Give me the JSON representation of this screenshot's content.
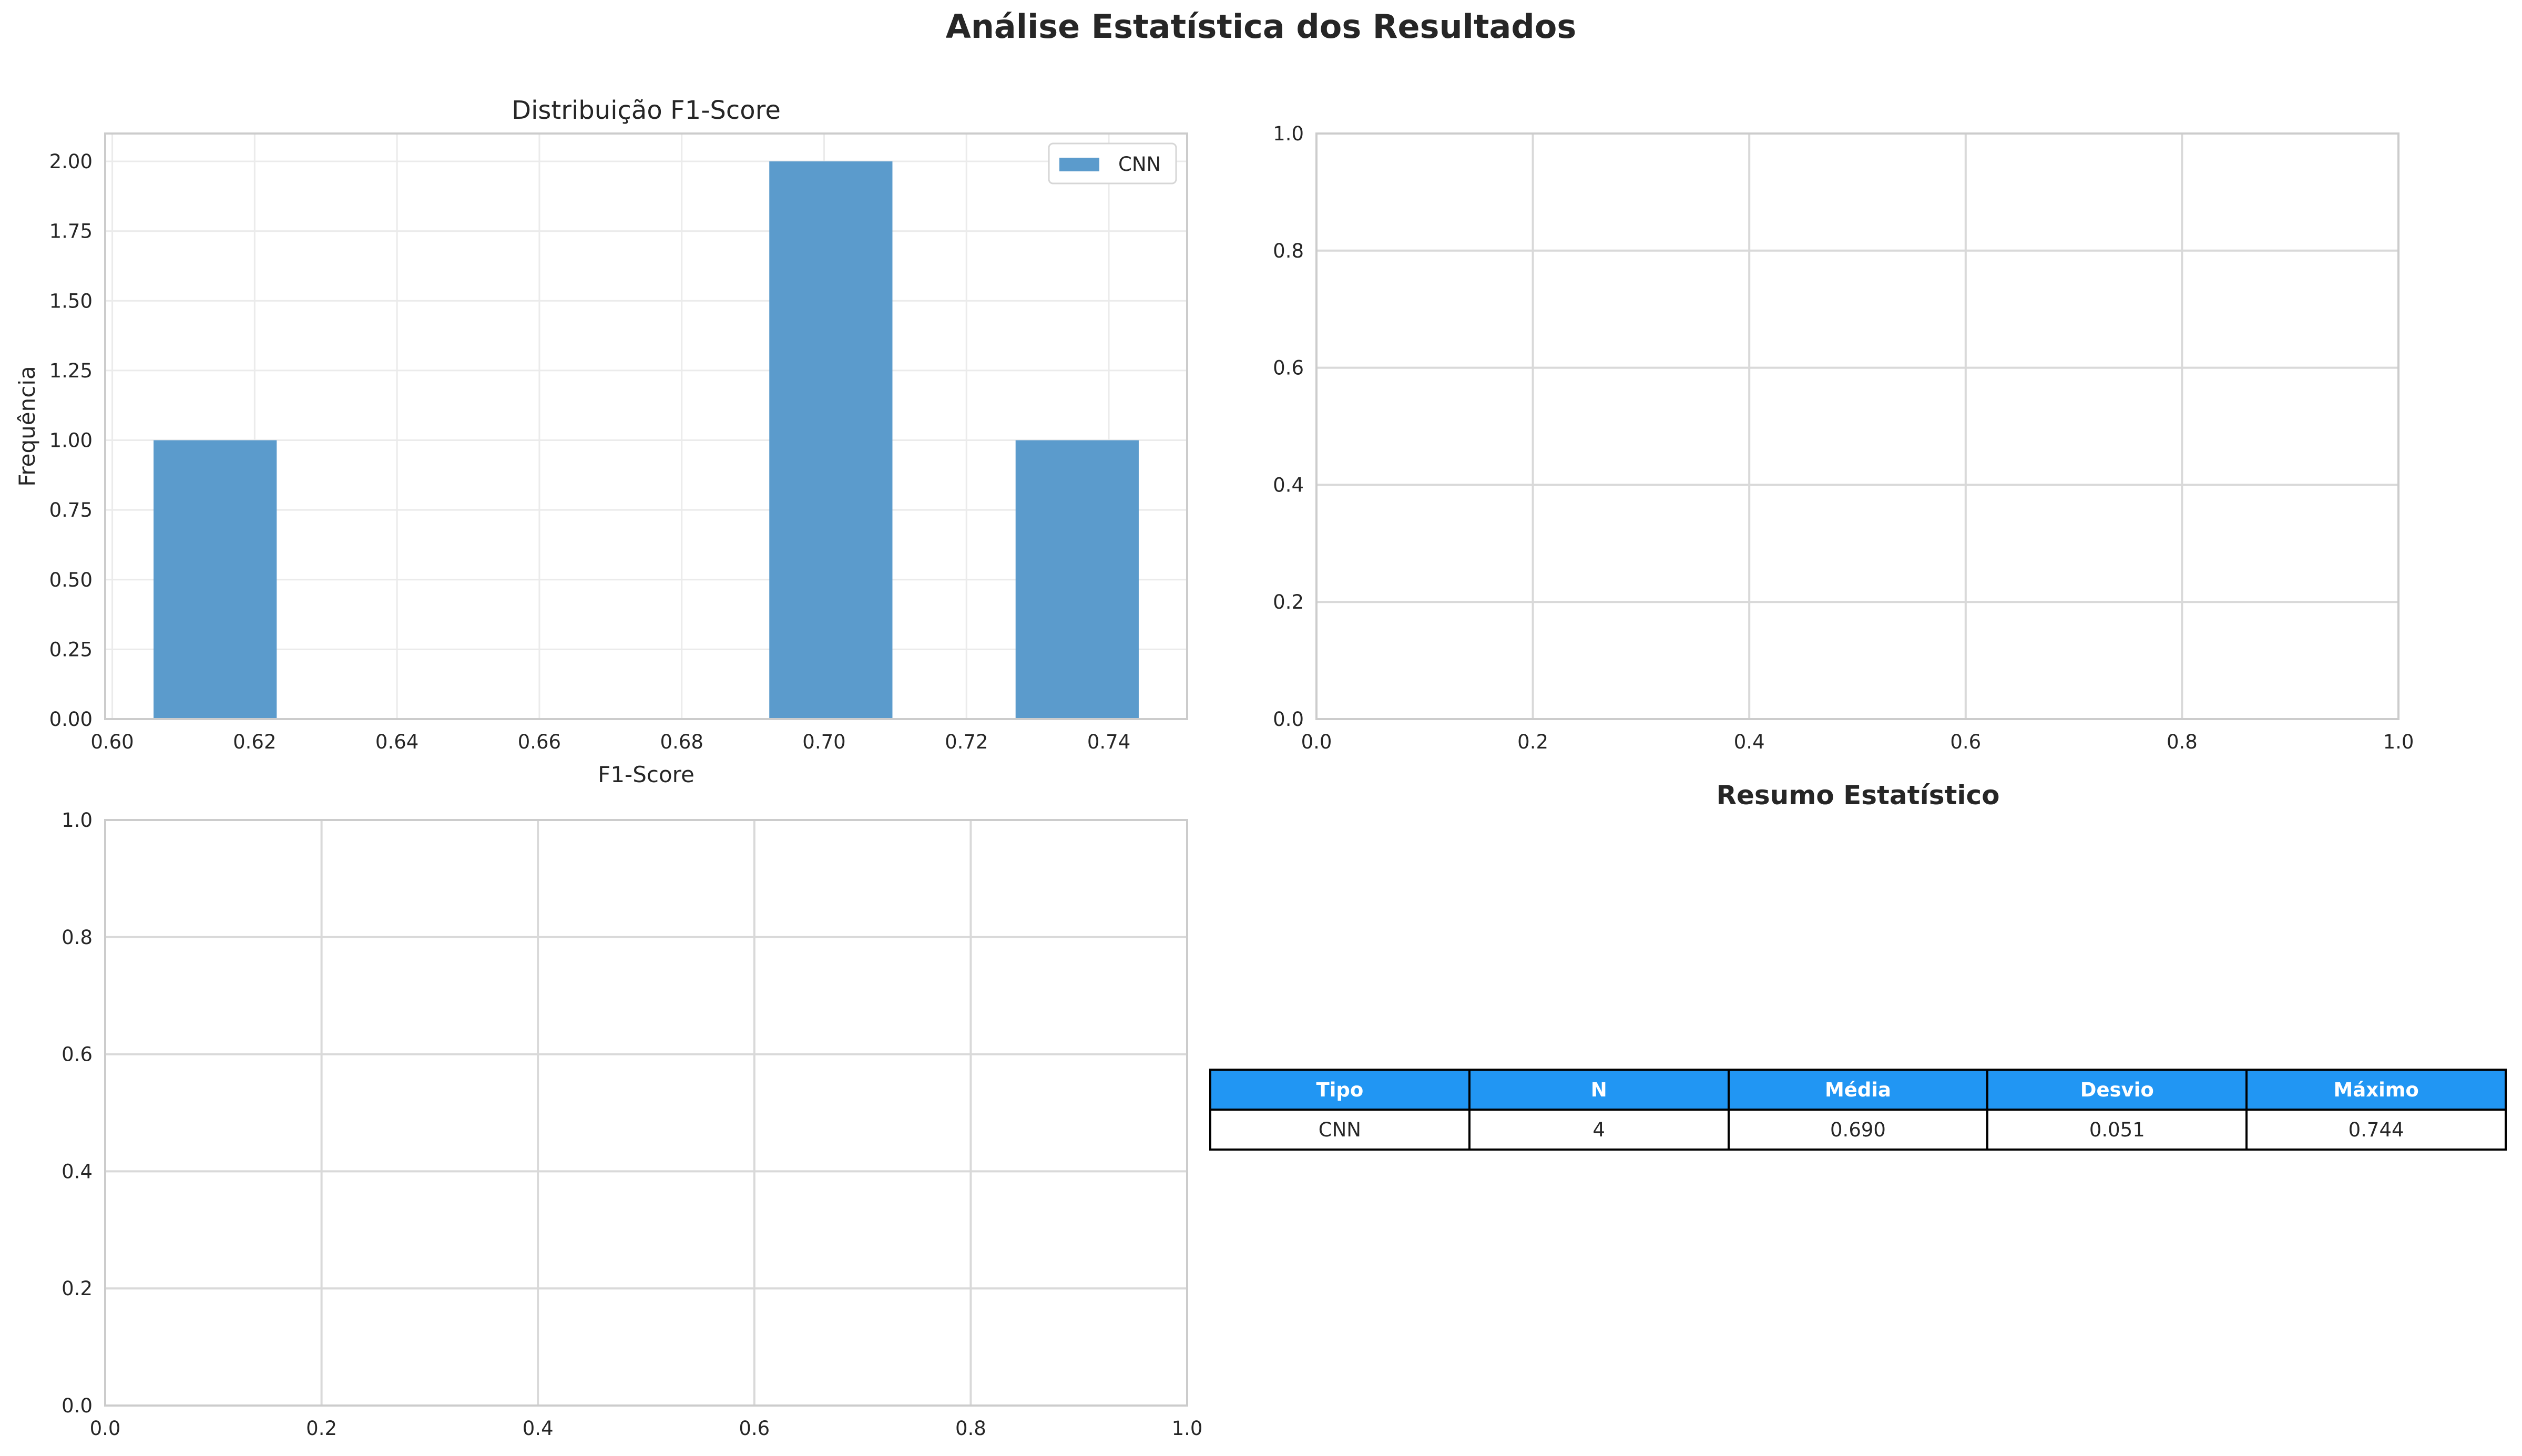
{
  "suptitle": "Análise Estatística dos Resultados",
  "colors": {
    "bar": "#5b9bcc",
    "table_header": "#2196f3",
    "grid": "#d9d9d9",
    "spine": "#cccccc"
  },
  "chart_data": [
    {
      "type": "bar",
      "subtype": "histogram",
      "title": "Distribuição F1-Score",
      "xlabel": "F1-Score",
      "ylabel": "Frequência",
      "xlim": [
        0.599,
        0.751
      ],
      "ylim": [
        0,
        2.1
      ],
      "xticks": [
        "0.60",
        "0.62",
        "0.64",
        "0.66",
        "0.68",
        "0.70",
        "0.72",
        "0.74"
      ],
      "yticks": [
        "0.00",
        "0.25",
        "0.50",
        "0.75",
        "1.00",
        "1.25",
        "1.50",
        "1.75",
        "2.00"
      ],
      "grid": true,
      "legend": "top-right",
      "series": [
        {
          "name": "CNN",
          "bins": [
            {
              "x0": 0.6058,
              "x1": 0.6231,
              "count": 1
            },
            {
              "x0": 0.6923,
              "x1": 0.7096,
              "count": 2
            },
            {
              "x0": 0.7269,
              "x1": 0.7442,
              "count": 1
            }
          ]
        }
      ]
    },
    {
      "type": "scatter",
      "title": "",
      "xlim": [
        0,
        1
      ],
      "ylim": [
        0,
        1
      ],
      "xticks": [
        "0.0",
        "0.2",
        "0.4",
        "0.6",
        "0.8",
        "1.0"
      ],
      "yticks": [
        "0.0",
        "0.2",
        "0.4",
        "0.6",
        "0.8",
        "1.0"
      ],
      "grid": true,
      "series": []
    },
    {
      "type": "scatter",
      "title": "",
      "xlim": [
        0,
        1
      ],
      "ylim": [
        0,
        1
      ],
      "xticks": [
        "0.0",
        "0.2",
        "0.4",
        "0.6",
        "0.8",
        "1.0"
      ],
      "yticks": [
        "0.0",
        "0.2",
        "0.4",
        "0.6",
        "0.8",
        "1.0"
      ],
      "grid": true,
      "series": []
    },
    {
      "type": "table",
      "title": "Resumo Estatístico",
      "columns": [
        "Tipo",
        "N",
        "Média",
        "Desvio",
        "Máximo"
      ],
      "rows": [
        [
          "CNN",
          "4",
          "0.690",
          "0.051",
          "0.744"
        ]
      ]
    }
  ]
}
